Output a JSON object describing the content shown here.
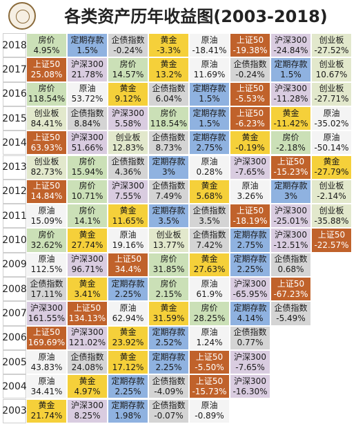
{
  "title": "各类资产历年收益图(2003-2018)",
  "logo": {
    "icon": "seal-logo-icon"
  },
  "asset_colors": {
    "房价": "#cbe0b7",
    "定期存款": "#8fb2e0",
    "企债指数": "#d4d4d4",
    "黄金": "#f5d03a",
    "原油": "#f4f4f4",
    "上证50": "#c0622b",
    "沪深300": "#d9cce0",
    "创业板": "#e2e8cc"
  },
  "chart_data": {
    "type": "table",
    "title": "各类资产历年收益图(2003-2018)",
    "rows": [
      {
        "year": "2018",
        "items": [
          {
            "asset": "房价",
            "value": "4.95%"
          },
          {
            "asset": "定期存款",
            "value": "1.5%"
          },
          {
            "asset": "企债指数",
            "value": "-0.24%"
          },
          {
            "asset": "黄金",
            "value": "-3.3%"
          },
          {
            "asset": "原油",
            "value": "-18.41%"
          },
          {
            "asset": "上证50",
            "value": "-19.38%"
          },
          {
            "asset": "沪深300",
            "value": "-24.84%"
          },
          {
            "asset": "创业板",
            "value": "-27.52%"
          }
        ]
      },
      {
        "year": "2017",
        "items": [
          {
            "asset": "上证50",
            "value": "25.08%"
          },
          {
            "asset": "沪深300",
            "value": "21.78%"
          },
          {
            "asset": "房价",
            "value": "14.57%"
          },
          {
            "asset": "黄金",
            "value": "13.2%"
          },
          {
            "asset": "原油",
            "value": "11.69%"
          },
          {
            "asset": "企债指数",
            "value": "-0.24%"
          },
          {
            "asset": "定期存款",
            "value": "1.5%"
          },
          {
            "asset": "创业板",
            "value": "10.67%"
          }
        ]
      },
      {
        "year": "2016",
        "items": [
          {
            "asset": "房价",
            "value": "118.54%"
          },
          {
            "asset": "原油",
            "value": "53.72%"
          },
          {
            "asset": "黄金",
            "value": "9.12%"
          },
          {
            "asset": "企债指数",
            "value": "6.04%"
          },
          {
            "asset": "定期存款",
            "value": "1.5%"
          },
          {
            "asset": "上证50",
            "value": "-5.53%"
          },
          {
            "asset": "沪深300",
            "value": "-11.28%"
          },
          {
            "asset": "创业板",
            "value": "-27.71%"
          }
        ]
      },
      {
        "year": "2015",
        "items": [
          {
            "asset": "创业板",
            "value": "84.41%"
          },
          {
            "asset": "企债指数",
            "value": "8.84%"
          },
          {
            "asset": "沪深300",
            "value": "5.58%"
          },
          {
            "asset": "房价",
            "value": "118.54%"
          },
          {
            "asset": "定期存款",
            "value": "1.5%"
          },
          {
            "asset": "上证50",
            "value": "-6.23%"
          },
          {
            "asset": "黄金",
            "value": "-11.42%"
          },
          {
            "asset": "原油",
            "value": "-35.02%"
          }
        ]
      },
      {
        "year": "2014",
        "items": [
          {
            "asset": "上证50",
            "value": "63.93%"
          },
          {
            "asset": "沪深300",
            "value": "51.66%"
          },
          {
            "asset": "创业板",
            "value": "12.83%"
          },
          {
            "asset": "企债指数",
            "value": "8.73%"
          },
          {
            "asset": "定期存款",
            "value": "2.75%"
          },
          {
            "asset": "黄金",
            "value": "-0.19%"
          },
          {
            "asset": "房价",
            "value": "-2.18%"
          },
          {
            "asset": "原油",
            "value": "-50.14%"
          }
        ]
      },
      {
        "year": "2013",
        "items": [
          {
            "asset": "创业板",
            "value": "82.73%"
          },
          {
            "asset": "房价",
            "value": "15.94%"
          },
          {
            "asset": "企债指数",
            "value": "4.36%"
          },
          {
            "asset": "定期存款",
            "value": "3%"
          },
          {
            "asset": "原油",
            "value": "0.28%"
          },
          {
            "asset": "沪深300",
            "value": "-7.65%"
          },
          {
            "asset": "上证50",
            "value": "-15.23%"
          },
          {
            "asset": "黄金",
            "value": "-27.79%"
          }
        ]
      },
      {
        "year": "2012",
        "items": [
          {
            "asset": "上证50",
            "value": "14.84%"
          },
          {
            "asset": "房价",
            "value": "10.71%"
          },
          {
            "asset": "沪深300",
            "value": "7.55%"
          },
          {
            "asset": "企债指数",
            "value": "7.49%"
          },
          {
            "asset": "黄金",
            "value": "5.68%"
          },
          {
            "asset": "原油",
            "value": "3.26%"
          },
          {
            "asset": "定期存款",
            "value": "3%"
          },
          {
            "asset": "创业板",
            "value": "-2.14%"
          }
        ]
      },
      {
        "year": "2011",
        "items": [
          {
            "asset": "原油",
            "value": "15.09%"
          },
          {
            "asset": "房价",
            "value": "14.1%"
          },
          {
            "asset": "黄金",
            "value": "11.65%"
          },
          {
            "asset": "定期存款",
            "value": "3.5%"
          },
          {
            "asset": "企债指数",
            "value": "3.5%"
          },
          {
            "asset": "上证50",
            "value": "-18.19%"
          },
          {
            "asset": "沪深300",
            "value": "-25.01%"
          },
          {
            "asset": "创业板",
            "value": "-35.88%"
          }
        ]
      },
      {
        "year": "2010",
        "items": [
          {
            "asset": "房价",
            "value": "32.62%"
          },
          {
            "asset": "黄金",
            "value": "27.74%"
          },
          {
            "asset": "原油",
            "value": "19.16%"
          },
          {
            "asset": "创业板",
            "value": "13.77%"
          },
          {
            "asset": "企债指数",
            "value": "7.42%"
          },
          {
            "asset": "定期存款",
            "value": "2.75%"
          },
          {
            "asset": "沪深300",
            "value": "-12.51%"
          },
          {
            "asset": "上证50",
            "value": "-22.57%"
          }
        ]
      },
      {
        "year": "2009",
        "items": [
          {
            "asset": "原油",
            "value": "112.5%"
          },
          {
            "asset": "沪深300",
            "value": "96.71%"
          },
          {
            "asset": "上证50",
            "value": "34.4%"
          },
          {
            "asset": "房价",
            "value": "31.85%"
          },
          {
            "asset": "黄金",
            "value": "27.63%"
          },
          {
            "asset": "定期存款",
            "value": "2.25%"
          },
          {
            "asset": "企债指数",
            "value": "0.68%"
          }
        ]
      },
      {
        "year": "2008",
        "items": [
          {
            "asset": "企债指数",
            "value": "17.11%"
          },
          {
            "asset": "黄金",
            "value": "3.41%"
          },
          {
            "asset": "定期存款",
            "value": "2.25%"
          },
          {
            "asset": "房价",
            "value": "2.15%"
          },
          {
            "asset": "原油",
            "value": "61.9%"
          },
          {
            "asset": "沪深300",
            "value": "-65.95%"
          },
          {
            "asset": "上证50",
            "value": "-67.23%"
          }
        ]
      },
      {
        "year": "2007",
        "items": [
          {
            "asset": "沪深300",
            "value": "161.55%"
          },
          {
            "asset": "上证50",
            "value": "134.13%"
          },
          {
            "asset": "原油",
            "value": "62.94%"
          },
          {
            "asset": "黄金",
            "value": "31.59%"
          },
          {
            "asset": "房价",
            "value": "28.25%"
          },
          {
            "asset": "定期存款",
            "value": "4.14%"
          },
          {
            "asset": "企债指数",
            "value": "-5.49%"
          }
        ]
      },
      {
        "year": "2006",
        "items": [
          {
            "asset": "上证50",
            "value": "169.69%"
          },
          {
            "asset": "沪深300",
            "value": "121.02%"
          },
          {
            "asset": "黄金",
            "value": "23.92%"
          },
          {
            "asset": "定期存款",
            "value": "2.52%"
          },
          {
            "asset": "原油",
            "value": "1.24%"
          },
          {
            "asset": "企债指数",
            "value": "0.77%"
          }
        ]
      },
      {
        "year": "2005",
        "items": [
          {
            "asset": "原油",
            "value": "43.83%"
          },
          {
            "asset": "企债指数",
            "value": "24.08%"
          },
          {
            "asset": "黄金",
            "value": "17.12%"
          },
          {
            "asset": "定期存款",
            "value": "2.25%"
          },
          {
            "asset": "上证50",
            "value": "-5.50%"
          },
          {
            "asset": "沪深300",
            "value": "-7.65%"
          }
        ]
      },
      {
        "year": "2004",
        "items": [
          {
            "asset": "原油",
            "value": "34.41%"
          },
          {
            "asset": "黄金",
            "value": "4.97%"
          },
          {
            "asset": "定期存款",
            "value": "2.25%"
          },
          {
            "asset": "企债指数",
            "value": "-4.09%"
          },
          {
            "asset": "上证50",
            "value": "-15.73%"
          },
          {
            "asset": "沪深300",
            "value": "-16.30%"
          }
        ]
      },
      {
        "year": "2003",
        "items": [
          {
            "asset": "黄金",
            "value": "21.74%"
          },
          {
            "asset": "沪深300",
            "value": "8.25%"
          },
          {
            "asset": "定期存款",
            "value": "1.98%"
          },
          {
            "asset": "企债指数",
            "value": "-0.07%"
          },
          {
            "asset": "原油",
            "value": "-0.89%"
          }
        ]
      }
    ]
  }
}
